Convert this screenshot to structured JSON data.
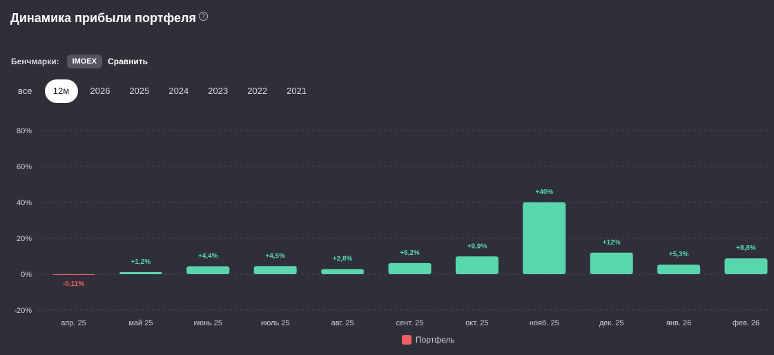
{
  "header": {
    "title": "Динамика прибыли портфеля",
    "help_icon": "question-circle-icon"
  },
  "benchmarks": {
    "label": "Бенчмарки:",
    "chip": "IMOEX",
    "compare": "Сравнить"
  },
  "periods": [
    "все",
    "12м",
    "2026",
    "2025",
    "2024",
    "2023",
    "2022",
    "2021"
  ],
  "active_period": "12м",
  "colors": {
    "positive": "#5ad6ad",
    "negative": "#ef5e63",
    "background": "#2f2f39",
    "grid": "#4a4a56"
  },
  "chart_data": {
    "type": "bar",
    "categories": [
      "апр. 25",
      "май 25",
      "июнь 25",
      "июль 25",
      "авг. 25",
      "сент. 25",
      "окт. 25",
      "нояб. 25",
      "дек. 25",
      "янв. 26",
      "фев. 26"
    ],
    "series": [
      {
        "name": "Портфель",
        "values": [
          -0.11,
          1.2,
          4.4,
          4.5,
          2.8,
          6.2,
          9.9,
          40,
          12,
          5.3,
          8.8
        ]
      }
    ],
    "data_labels": [
      "-0,11%",
      "+1,2%",
      "+4,4%",
      "+4,5%",
      "+2,8%",
      "+6,2%",
      "+9,9%",
      "+40%",
      "+12%",
      "+5,3%",
      "+8,8%"
    ],
    "yticks": [
      "80%",
      "60%",
      "40%",
      "20%",
      "0%",
      "-20%"
    ],
    "ytick_values": [
      80,
      60,
      40,
      20,
      0,
      -20
    ],
    "ylim": [
      -20,
      80
    ],
    "grid": true,
    "legend": "bottom-center"
  }
}
